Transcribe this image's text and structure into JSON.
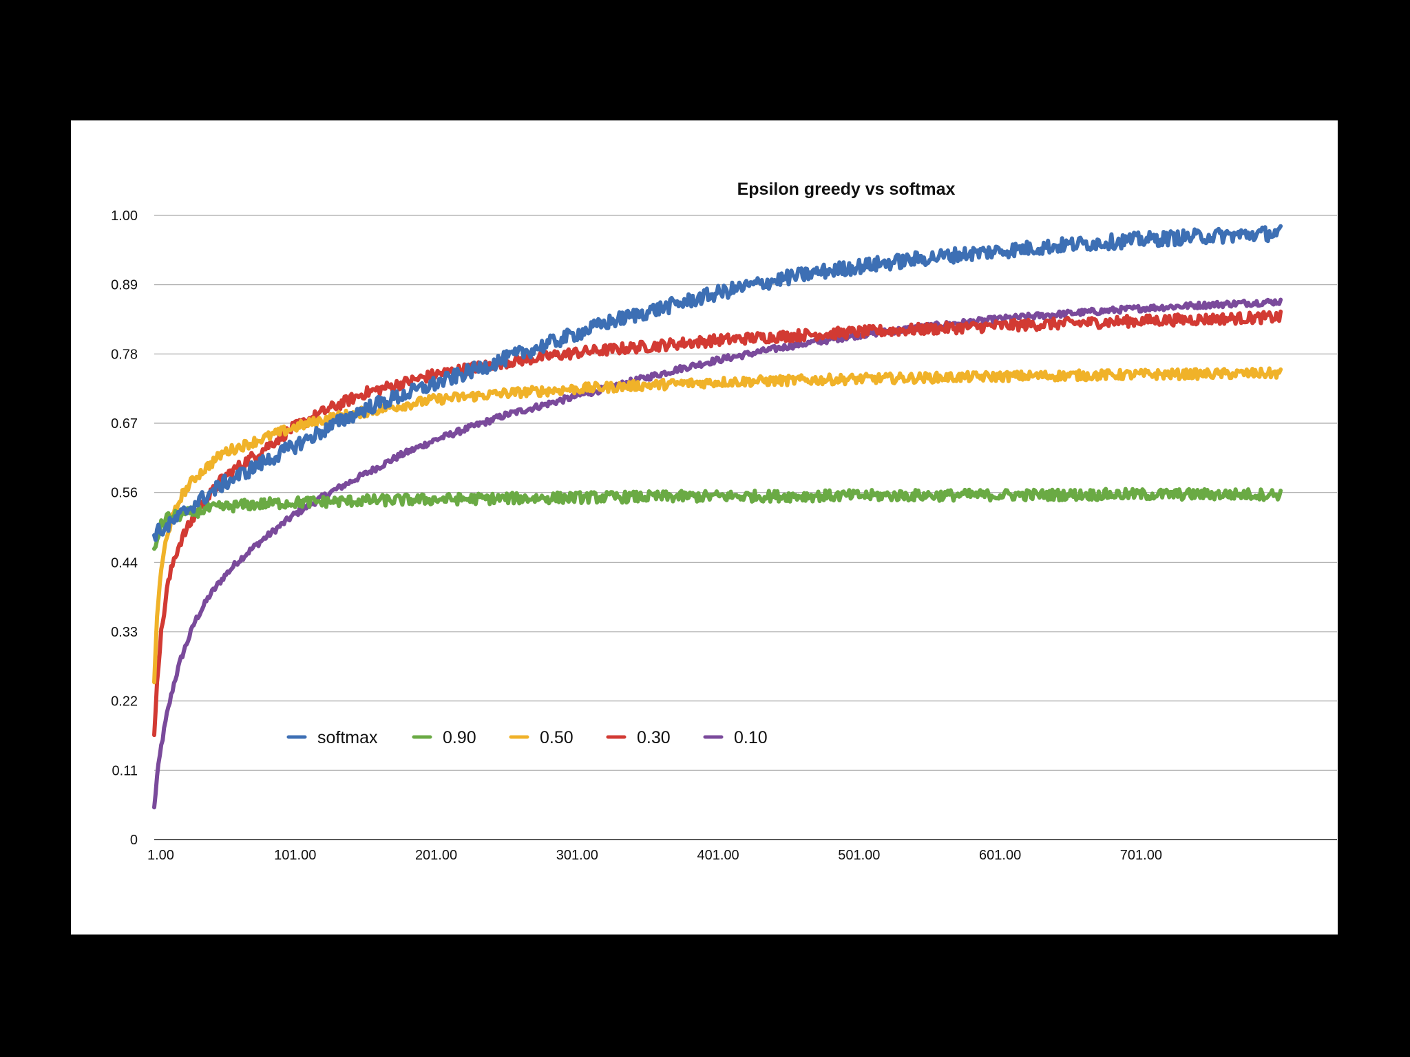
{
  "chart_data": {
    "type": "line",
    "title": "Epsilon greedy vs softmax",
    "xlabel": "",
    "ylabel": "",
    "x_tick_labels": [
      "1.00",
      "101.00",
      "201.00",
      "301.00",
      "401.00",
      "501.00",
      "601.00",
      "701.00"
    ],
    "x_ticks": [
      1,
      101,
      201,
      301,
      401,
      501,
      601,
      701
    ],
    "y_tick_labels": [
      "0",
      "0.11",
      "0.22",
      "0.33",
      "0.44",
      "0.56",
      "0.67",
      "0.78",
      "0.89",
      "1.00"
    ],
    "y_ticks": [
      0,
      0.111,
      0.222,
      0.333,
      0.444,
      0.556,
      0.667,
      0.778,
      0.889,
      1.0
    ],
    "xlim": [
      1,
      840
    ],
    "ylim": [
      0,
      1.0
    ],
    "grid": true,
    "legend_position": "bottom-left",
    "series": [
      {
        "name": "softmax",
        "color": "#3d6fb4",
        "x": [
          1,
          10,
          25,
          50,
          75,
          100,
          125,
          150,
          175,
          200,
          225,
          250,
          275,
          300,
          325,
          350,
          375,
          400,
          425,
          450,
          475,
          500,
          525,
          550,
          575,
          600,
          625,
          650,
          675,
          700,
          725,
          750,
          775,
          800
        ],
        "y": [
          0.49,
          0.5,
          0.53,
          0.57,
          0.6,
          0.63,
          0.66,
          0.69,
          0.71,
          0.73,
          0.75,
          0.77,
          0.79,
          0.81,
          0.83,
          0.845,
          0.86,
          0.875,
          0.888,
          0.9,
          0.91,
          0.918,
          0.925,
          0.932,
          0.938,
          0.943,
          0.948,
          0.953,
          0.957,
          0.961,
          0.964,
          0.967,
          0.969,
          0.972
        ],
        "noise": 0.012
      },
      {
        "name": "0.90",
        "color": "#6aaa44",
        "x": [
          1,
          5,
          10,
          20,
          30,
          40,
          60,
          80,
          100,
          150,
          200,
          300,
          400,
          500,
          600,
          700,
          800
        ],
        "y": [
          0.46,
          0.5,
          0.515,
          0.52,
          0.525,
          0.53,
          0.535,
          0.538,
          0.54,
          0.543,
          0.545,
          0.548,
          0.55,
          0.551,
          0.552,
          0.553,
          0.553
        ],
        "noise": 0.009
      },
      {
        "name": "0.50",
        "color": "#f0b229",
        "x": [
          1,
          3,
          6,
          10,
          15,
          20,
          30,
          40,
          50,
          75,
          100,
          125,
          150,
          200,
          250,
          300,
          350,
          400,
          500,
          600,
          700,
          800
        ],
        "y": [
          0.25,
          0.36,
          0.43,
          0.49,
          0.52,
          0.55,
          0.58,
          0.6,
          0.62,
          0.64,
          0.66,
          0.675,
          0.685,
          0.705,
          0.715,
          0.722,
          0.728,
          0.733,
          0.738,
          0.742,
          0.745,
          0.747
        ],
        "noise": 0.008
      },
      {
        "name": "0.30",
        "color": "#d23a33",
        "x": [
          1,
          3,
          6,
          10,
          15,
          20,
          30,
          40,
          50,
          75,
          100,
          125,
          150,
          200,
          250,
          300,
          350,
          400,
          450,
          500,
          550,
          600,
          650,
          700,
          750,
          800
        ],
        "y": [
          0.16,
          0.26,
          0.33,
          0.4,
          0.45,
          0.48,
          0.52,
          0.55,
          0.58,
          0.62,
          0.66,
          0.69,
          0.715,
          0.745,
          0.765,
          0.78,
          0.79,
          0.8,
          0.807,
          0.813,
          0.818,
          0.823,
          0.827,
          0.831,
          0.834,
          0.837
        ],
        "noise": 0.009
      },
      {
        "name": "0.10",
        "color": "#7a4a9b",
        "x": [
          1,
          3,
          6,
          10,
          15,
          20,
          30,
          40,
          50,
          60,
          75,
          100,
          125,
          150,
          175,
          200,
          225,
          250,
          275,
          300,
          325,
          350,
          375,
          400,
          450,
          500,
          550,
          600,
          650,
          700,
          750,
          800
        ],
        "y": [
          0.05,
          0.1,
          0.15,
          0.2,
          0.25,
          0.29,
          0.35,
          0.39,
          0.42,
          0.445,
          0.475,
          0.52,
          0.555,
          0.585,
          0.615,
          0.64,
          0.66,
          0.68,
          0.695,
          0.71,
          0.725,
          0.74,
          0.755,
          0.768,
          0.79,
          0.808,
          0.822,
          0.834,
          0.843,
          0.851,
          0.857,
          0.862
        ],
        "noise": 0.005
      }
    ]
  }
}
